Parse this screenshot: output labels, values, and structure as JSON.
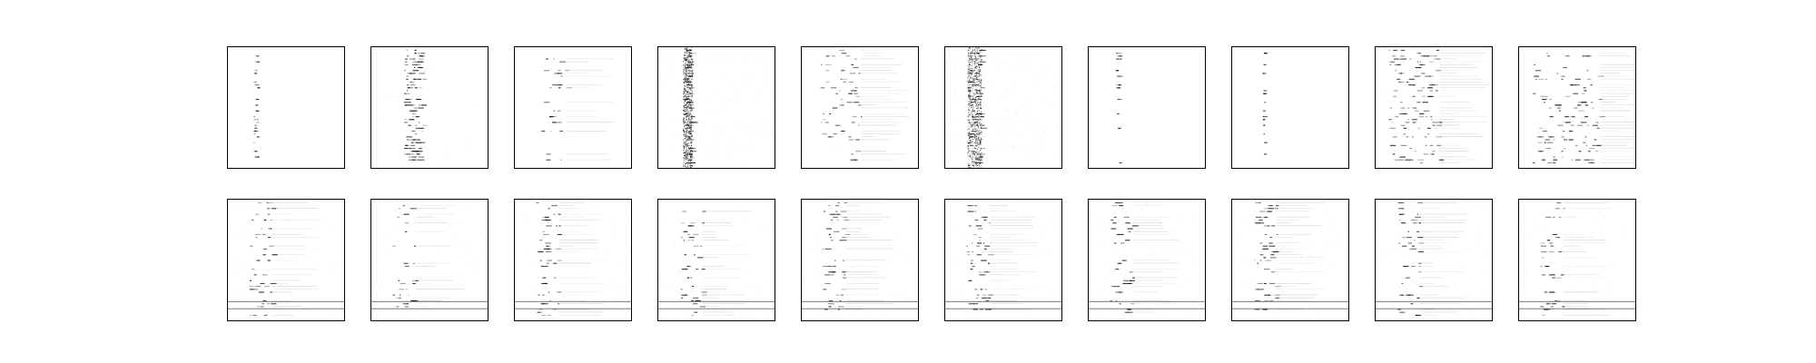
{
  "figure": {
    "background": "#ffffff",
    "rows": [
      {
        "name": "top-row",
        "panels": [
          {
            "pattern": "sparse-column",
            "band_center": 0.24,
            "band_spread": 0.02,
            "density": 0.55,
            "noise": 0.0,
            "stripes": 0
          },
          {
            "pattern": "dense-columns",
            "band_center": 0.36,
            "band_spread": 0.08,
            "density": 0.95,
            "noise": 0.01,
            "stripes": 0
          },
          {
            "pattern": "sparse-rows",
            "band_center": 0.33,
            "band_spread": 0.12,
            "density": 0.55,
            "noise": 0.0,
            "stripes": 0
          },
          {
            "pattern": "noisy-column",
            "band_center": 0.25,
            "band_spread": 0.04,
            "density": 0.98,
            "noise": 0.1,
            "stripes": 0
          },
          {
            "pattern": "sparse-rows",
            "band_center": 0.33,
            "band_spread": 0.18,
            "density": 0.7,
            "noise": 0.01,
            "stripes": 0
          },
          {
            "pattern": "noisy-column",
            "band_center": 0.25,
            "band_spread": 0.06,
            "density": 1.0,
            "noise": 0.14,
            "stripes": 0
          },
          {
            "pattern": "sparse-column",
            "band_center": 0.25,
            "band_spread": 0.02,
            "density": 0.45,
            "noise": 0.0,
            "stripes": 0
          },
          {
            "pattern": "sparse-column",
            "band_center": 0.27,
            "band_spread": 0.01,
            "density": 0.3,
            "noise": 0.0,
            "stripes": 0
          },
          {
            "pattern": "dense-rows",
            "band_center": 0.33,
            "band_spread": 0.22,
            "density": 0.8,
            "noise": 0.01,
            "stripes": 0
          },
          {
            "pattern": "dense-rows",
            "band_center": 0.4,
            "band_spread": 0.3,
            "density": 0.8,
            "noise": 0.01,
            "stripes": 0
          }
        ]
      },
      {
        "name": "bottom-row",
        "panels": [
          {
            "pattern": "faint-grid",
            "band_center": 0.28,
            "band_spread": 0.1,
            "density": 0.6,
            "noise": 0.06,
            "stripes": 2
          },
          {
            "pattern": "faint-grid",
            "band_center": 0.28,
            "band_spread": 0.1,
            "density": 0.6,
            "noise": 0.06,
            "stripes": 2
          },
          {
            "pattern": "faint-grid",
            "band_center": 0.28,
            "band_spread": 0.1,
            "density": 0.6,
            "noise": 0.06,
            "stripes": 2
          },
          {
            "pattern": "faint-grid",
            "band_center": 0.28,
            "band_spread": 0.1,
            "density": 0.6,
            "noise": 0.06,
            "stripes": 2
          },
          {
            "pattern": "faint-grid",
            "band_center": 0.28,
            "band_spread": 0.1,
            "density": 0.6,
            "noise": 0.06,
            "stripes": 2
          },
          {
            "pattern": "faint-grid",
            "band_center": 0.28,
            "band_spread": 0.1,
            "density": 0.6,
            "noise": 0.06,
            "stripes": 2
          },
          {
            "pattern": "faint-grid",
            "band_center": 0.28,
            "band_spread": 0.1,
            "density": 0.6,
            "noise": 0.06,
            "stripes": 2
          },
          {
            "pattern": "faint-grid",
            "band_center": 0.28,
            "band_spread": 0.1,
            "density": 0.6,
            "noise": 0.06,
            "stripes": 2
          },
          {
            "pattern": "faint-grid",
            "band_center": 0.28,
            "band_spread": 0.1,
            "density": 0.6,
            "noise": 0.06,
            "stripes": 2
          },
          {
            "pattern": "faint-grid",
            "band_center": 0.28,
            "band_spread": 0.1,
            "density": 0.6,
            "noise": 0.06,
            "stripes": 2
          }
        ]
      }
    ]
  }
}
